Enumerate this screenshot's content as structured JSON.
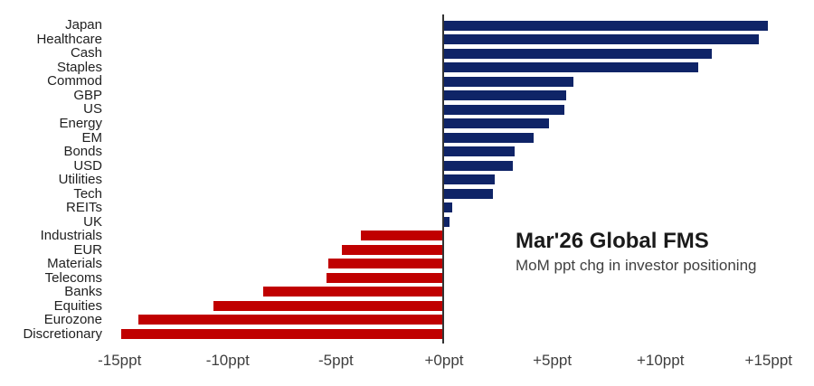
{
  "chart_data": {
    "type": "bar",
    "orientation": "horizontal",
    "title": "Mar'26 Global FMS",
    "subtitle": "MoM ppt chg in investor positioning",
    "unit": "ppt",
    "xlim": [
      -15,
      15
    ],
    "grid": false,
    "legend": false,
    "x_tick_labels": [
      "-15ppt",
      "-10ppt",
      "-5ppt",
      "+0ppt",
      "+5ppt",
      "+10ppt",
      "+15ppt"
    ],
    "x_tick_values": [
      -15,
      -10,
      -5,
      0,
      5,
      10,
      15
    ],
    "categories": [
      "Japan",
      "Healthcare",
      "Cash",
      "Staples",
      "Commod",
      "GBP",
      "US",
      "Energy",
      "EM",
      "Bonds",
      "USD",
      "Utilities",
      "Tech",
      "REITs",
      "UK",
      "Industrials",
      "EUR",
      "Materials",
      "Telecoms",
      "Banks",
      "Equities",
      "Eurozone",
      "Discretionary"
    ],
    "values": [
      15.0,
      14.6,
      12.4,
      11.8,
      6.0,
      5.7,
      5.6,
      4.9,
      4.2,
      3.3,
      3.2,
      2.4,
      2.3,
      0.4,
      0.3,
      -3.8,
      -4.7,
      -5.3,
      -5.4,
      -8.3,
      -10.6,
      -14.1,
      -14.9
    ],
    "colors": {
      "positive_bar": "#0f2467",
      "negative_bar": "#c00000",
      "axis_line": "#333333",
      "tick_text": "#3f3f3f",
      "category_text": "#1f1f1f"
    }
  }
}
